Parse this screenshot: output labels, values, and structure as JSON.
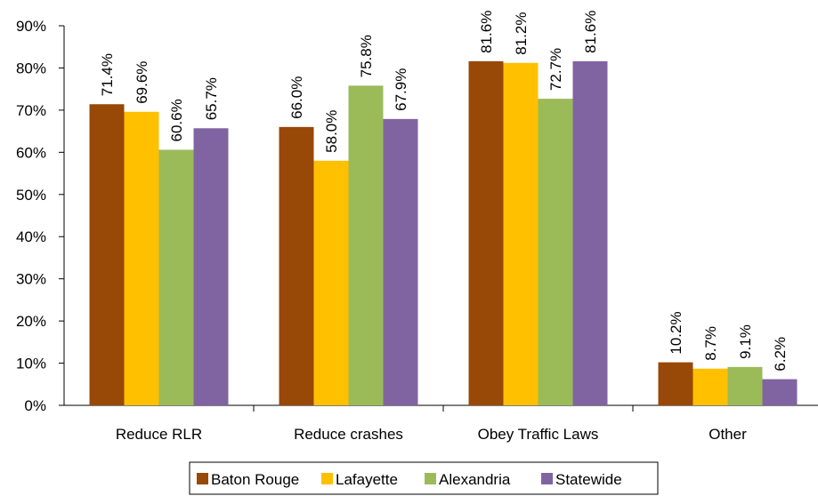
{
  "chart_data": {
    "type": "bar",
    "categories": [
      "Reduce RLR",
      "Reduce crashes",
      "Obey Traffic Laws",
      "Other"
    ],
    "series": [
      {
        "name": "Baton Rouge",
        "color": "#984807",
        "values": [
          71.4,
          66.0,
          81.6,
          10.2
        ],
        "labels": [
          "71.4%",
          "66.0%",
          "81.6%",
          "10.2%"
        ]
      },
      {
        "name": "Lafayette",
        "color": "#FFC000",
        "values": [
          69.6,
          58.0,
          81.2,
          8.7
        ],
        "labels": [
          "69.6%",
          "58.0%",
          "81.2%",
          "8.7%"
        ]
      },
      {
        "name": "Alexandria",
        "color": "#9BBB59",
        "values": [
          60.6,
          75.8,
          72.7,
          9.1
        ],
        "labels": [
          "60.6%",
          "75.8%",
          "72.7%",
          "9.1%"
        ]
      },
      {
        "name": "Statewide",
        "color": "#8064A2",
        "values": [
          65.7,
          67.9,
          81.6,
          6.2
        ],
        "labels": [
          "65.7%",
          "67.9%",
          "81.6%",
          "6.2%"
        ]
      }
    ],
    "ylim": [
      0,
      90
    ],
    "yticks": [
      0,
      10,
      20,
      30,
      40,
      50,
      60,
      70,
      80,
      90
    ],
    "ytick_labels": [
      "0%",
      "10%",
      "20%",
      "30%",
      "40%",
      "50%",
      "60%",
      "70%",
      "80%",
      "90%"
    ],
    "grid": false,
    "legend_position": "bottom"
  }
}
